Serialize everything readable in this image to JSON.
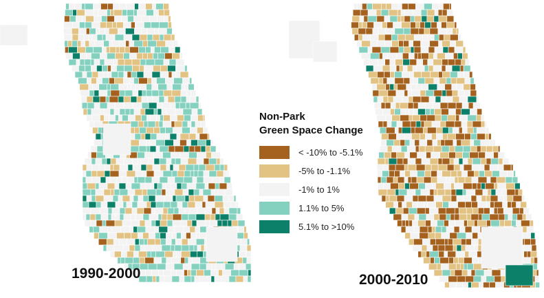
{
  "colors": {
    "strong_loss": "#a5621e",
    "loss": "#e3c384",
    "neutral": "#f3f3f3",
    "gain": "#84d1c0",
    "strong_gain": "#0c8068",
    "boundary": "#ffffff"
  },
  "legend": {
    "title_line1": "Non-Park",
    "title_line2": "Green Space Change",
    "items": [
      {
        "label": "< -10% to -5.1%",
        "color": "#a5621e"
      },
      {
        "label": "-5% to -1.1%",
        "color": "#e3c384"
      },
      {
        "label": "-1% to 1%",
        "color": "#f3f3f3"
      },
      {
        "label": "1.1% to 5%",
        "color": "#84d1c0"
      },
      {
        "label": "5.1% to >10%",
        "color": "#0c8068"
      }
    ]
  },
  "maps": [
    {
      "label": "1990-2000",
      "weights": [
        0.05,
        0.18,
        0.42,
        0.27,
        0.08
      ]
    },
    {
      "label": "2000-2010",
      "weights": [
        0.3,
        0.29,
        0.27,
        0.11,
        0.03
      ]
    }
  ]
}
